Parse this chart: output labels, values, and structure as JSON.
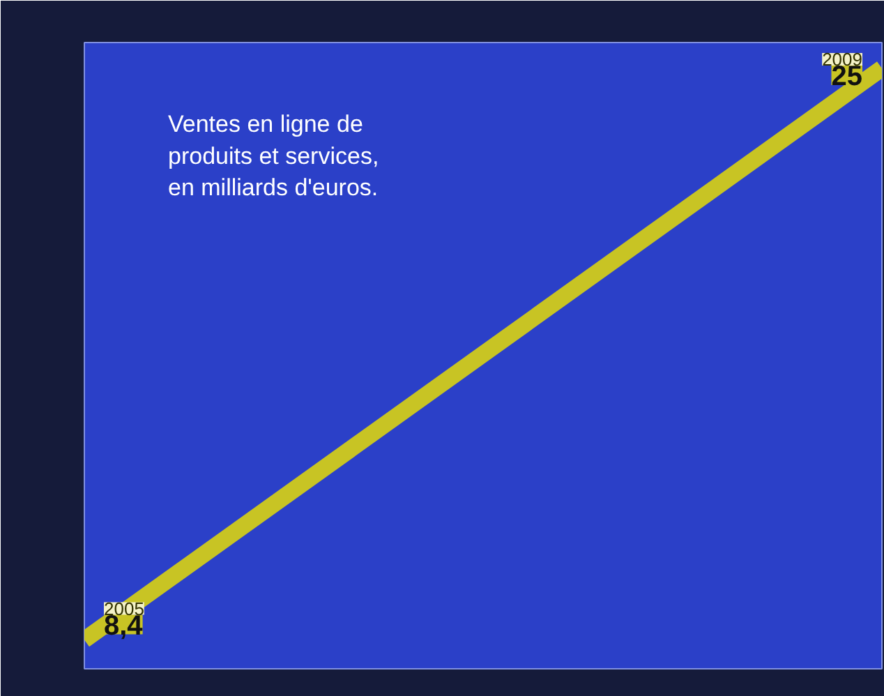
{
  "chart_data": {
    "type": "line",
    "title": "Ventes en ligne de\nproduits et services,\nen milliards d'euros.",
    "categories": [
      null,
      null
    ],
    "series": [
      {
        "color": "#c8c424",
        "values": [
          8.4,
          25
        ],
        "value_labels": [
          "8,4",
          "25"
        ]
      }
    ],
    "annotations": [
      "2005",
      "2009"
    ],
    "tick_labels": false,
    "grid": false,
    "line_style": "solid"
  }
}
